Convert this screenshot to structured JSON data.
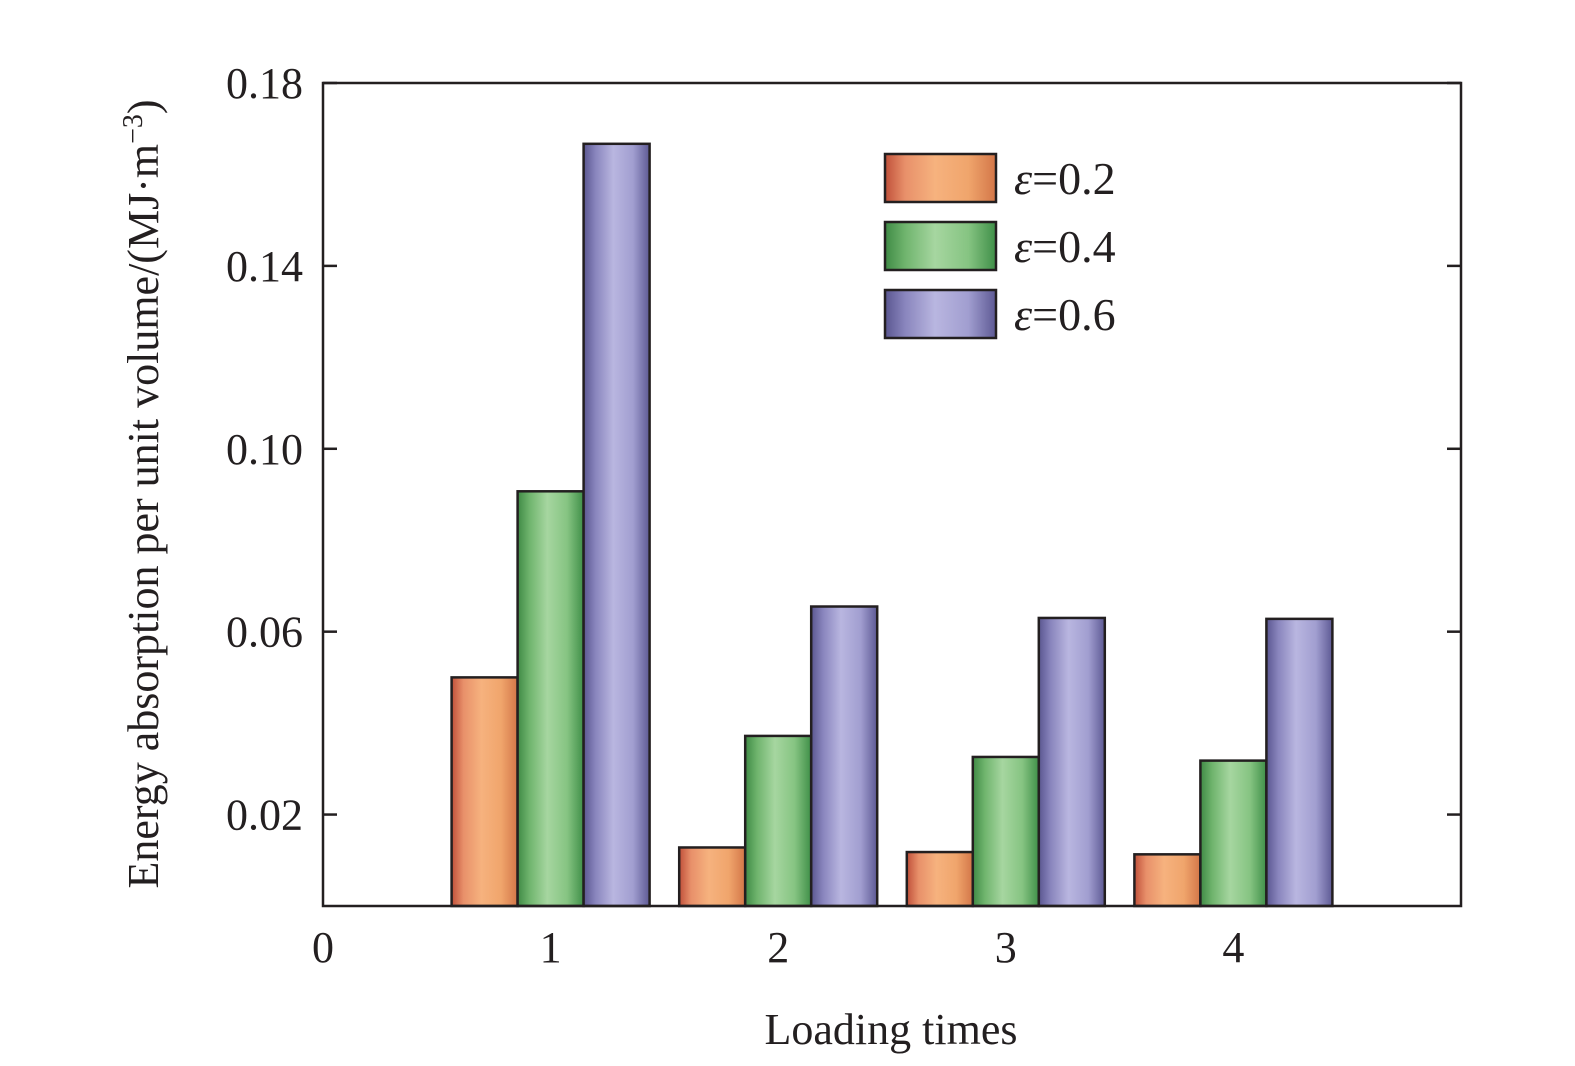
{
  "chart_data": {
    "type": "bar",
    "title": "",
    "xlabel": "Loading times",
    "ylabel": "Energy absorption per unit volume/(MJ·m",
    "ylabel_sup": "−3",
    "ylabel_end": ")",
    "x_ticks": [
      "0",
      "1",
      "2",
      "3",
      "4"
    ],
    "y_ticks": [
      "0.02",
      "0.06",
      "0.10",
      "0.14",
      "0.18"
    ],
    "xlim": [
      0,
      5
    ],
    "ylim": [
      0,
      0.18
    ],
    "categories": [
      1,
      2,
      3,
      4
    ],
    "series": [
      {
        "name": "ε=0.2",
        "eps": "ε",
        "value_label": "=0.2",
        "color": "#f2a06a",
        "values": [
          0.05,
          0.0128,
          0.0118,
          0.0113
        ]
      },
      {
        "name": "ε=0.4",
        "eps": "ε",
        "value_label": "=0.4",
        "color": "#7cc07a",
        "values": [
          0.0907,
          0.0372,
          0.0326,
          0.0318
        ]
      },
      {
        "name": "ε=0.6",
        "eps": "ε",
        "value_label": "=0.6",
        "color": "#9f9ccd",
        "values": [
          0.1667,
          0.0655,
          0.063,
          0.0628
        ]
      }
    ],
    "grid": false,
    "legend_position": "top-right"
  }
}
